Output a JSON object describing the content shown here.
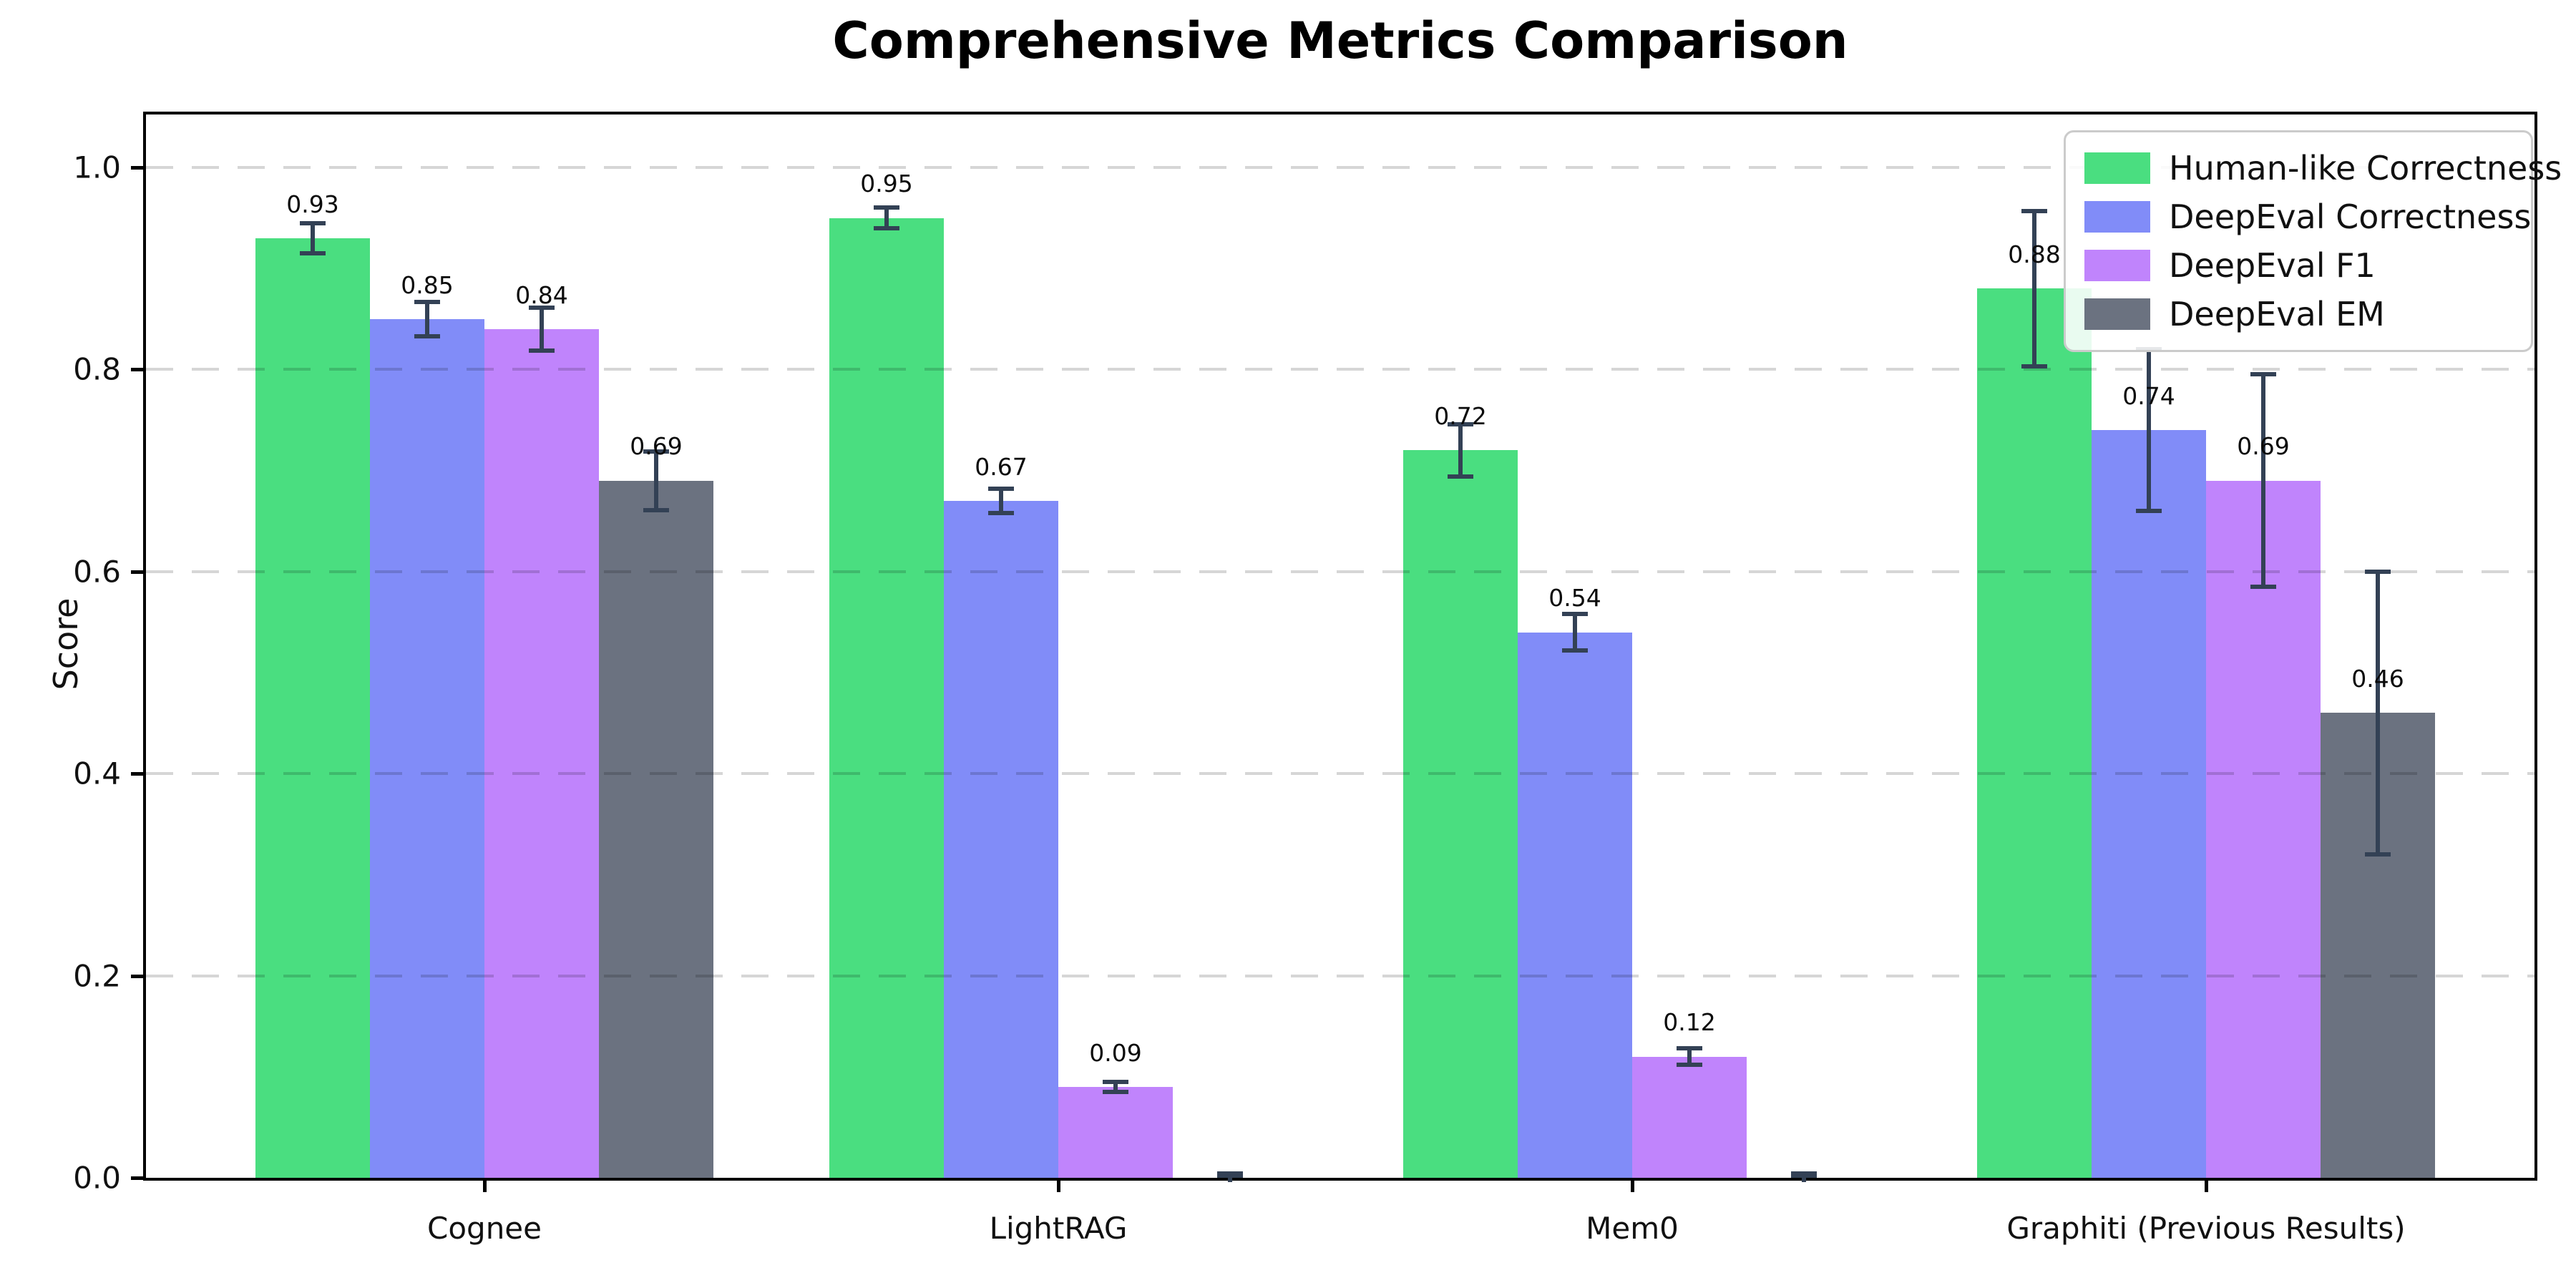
{
  "title": "Comprehensive Metrics Comparison",
  "ylabel": "Score",
  "colors": {
    "human_like": "#4ade80",
    "deepeval_correctness": "#818cf8",
    "deepeval_f1": "#c084fc",
    "deepeval_em": "#6b7280",
    "error_bar": "#334155",
    "grid": "#d6d6d6",
    "axis": "#000000",
    "legend_border": "#cbcbcb"
  },
  "chart_data": {
    "type": "bar",
    "title": "Comprehensive Metrics Comparison",
    "xlabel": "",
    "ylabel": "Score",
    "categories": [
      "Cognee",
      "LightRAG",
      "Mem0",
      "Graphiti (Previous Results)"
    ],
    "series": [
      {
        "name": "Human-like Correctness",
        "color": "#4ade80",
        "values": [
          0.93,
          0.95,
          0.72,
          0.88
        ],
        "errors": [
          0.015,
          0.01,
          0.026,
          0.077
        ],
        "labels": [
          "0.93",
          "0.95",
          "0.72",
          "0.88"
        ]
      },
      {
        "name": "DeepEval Correctness",
        "color": "#818cf8",
        "values": [
          0.85,
          0.67,
          0.54,
          0.74
        ],
        "errors": [
          0.017,
          0.012,
          0.018,
          0.08
        ],
        "labels": [
          "0.85",
          "0.67",
          "0.54",
          "0.74"
        ]
      },
      {
        "name": "DeepEval F1",
        "color": "#c084fc",
        "values": [
          0.84,
          0.09,
          0.12,
          0.69
        ],
        "errors": [
          0.021,
          0.005,
          0.008,
          0.105
        ],
        "labels": [
          "0.84",
          "0.09",
          "0.12",
          "0.69"
        ]
      },
      {
        "name": "DeepEval EM",
        "color": "#6b7280",
        "values": [
          0.69,
          0.0,
          0.0,
          0.46
        ],
        "errors": [
          0.029,
          0.004,
          0.004,
          0.14
        ],
        "labels": [
          "0.69",
          "",
          "",
          "0.46"
        ]
      }
    ],
    "yticks": [
      "0.0",
      "0.2",
      "0.4",
      "0.6",
      "0.8",
      "1.0"
    ],
    "ylim": [
      0.0,
      1.053
    ],
    "grid": "horizontal-dashed",
    "legend_position": "upper right",
    "error_bar_color": "#334155"
  }
}
